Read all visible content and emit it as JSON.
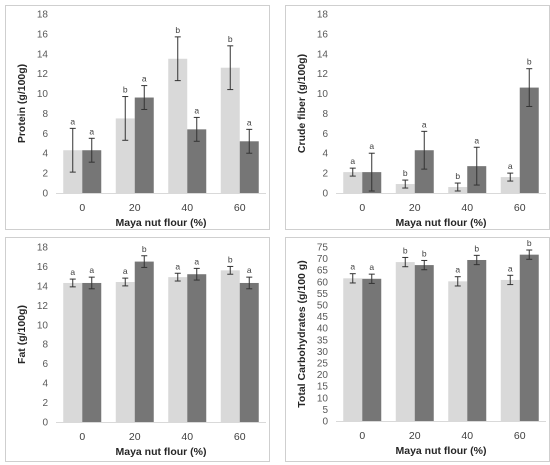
{
  "colors": {
    "series_a": "#d9d9d9",
    "series_b": "#767676"
  },
  "chart_data": [
    {
      "type": "bar",
      "xlabel": "Maya nut flour (%)",
      "ylabel": "Protein (g/100g)",
      "ylim": [
        0,
        18
      ],
      "yticks": [
        0,
        2,
        4,
        6,
        8,
        10,
        12,
        14,
        16,
        18
      ],
      "categories": [
        "0",
        "20",
        "40",
        "60"
      ],
      "grid": false,
      "series": [
        {
          "values": [
            4.3,
            7.5,
            13.5,
            12.6
          ],
          "errors": [
            2.2,
            2.2,
            2.2,
            2.2
          ],
          "letters": [
            "a",
            "b",
            "b",
            "b"
          ]
        },
        {
          "values": [
            4.3,
            9.6,
            6.4,
            5.2
          ],
          "errors": [
            1.2,
            1.2,
            1.2,
            1.2
          ],
          "letters": [
            "a",
            "a",
            "a",
            "a"
          ]
        }
      ]
    },
    {
      "type": "bar",
      "xlabel": "Maya nut flour (%)",
      "ylabel": "Crude fiber (g/100g)",
      "ylim": [
        0,
        18
      ],
      "yticks": [
        0,
        2,
        4,
        6,
        8,
        10,
        12,
        14,
        16,
        18
      ],
      "categories": [
        "0",
        "20",
        "40",
        "60"
      ],
      "grid": false,
      "series": [
        {
          "values": [
            2.1,
            0.9,
            0.6,
            1.6
          ],
          "errors": [
            0.4,
            0.4,
            0.4,
            0.4
          ],
          "letters": [
            "a",
            "b",
            "b",
            "a"
          ]
        },
        {
          "values": [
            2.1,
            4.3,
            2.7,
            10.6
          ],
          "errors": [
            1.9,
            1.9,
            1.9,
            1.9
          ],
          "letters": [
            "a",
            "a",
            "a",
            "b"
          ]
        }
      ]
    },
    {
      "type": "bar",
      "xlabel": "Maya nut flour (%)",
      "ylabel": "Fat (g/100g)",
      "ylim": [
        0,
        18
      ],
      "yticks": [
        0,
        2,
        4,
        6,
        8,
        10,
        12,
        14,
        16,
        18
      ],
      "categories": [
        "0",
        "20",
        "40",
        "60"
      ],
      "grid": false,
      "series": [
        {
          "values": [
            14.3,
            14.4,
            14.9,
            15.6
          ],
          "errors": [
            0.4,
            0.4,
            0.4,
            0.4
          ],
          "letters": [
            "a",
            "a",
            "a",
            "b"
          ]
        },
        {
          "values": [
            14.3,
            16.5,
            15.2,
            14.3
          ],
          "errors": [
            0.6,
            0.6,
            0.6,
            0.6
          ],
          "letters": [
            "a",
            "b",
            "a",
            "a"
          ]
        }
      ]
    },
    {
      "type": "bar",
      "xlabel": "Maya nut flour (%)",
      "ylabel": "Total Carbohydrates (g/100 g)",
      "ylim": [
        0,
        75
      ],
      "yticks": [
        0,
        5,
        10,
        15,
        20,
        25,
        30,
        35,
        40,
        45,
        50,
        55,
        60,
        65,
        70,
        75
      ],
      "categories": [
        "0",
        "20",
        "40",
        "60"
      ],
      "grid": false,
      "series": [
        {
          "values": [
            61.5,
            68.5,
            60.2,
            60.8
          ],
          "errors": [
            2,
            2,
            2,
            2
          ],
          "letters": [
            "a",
            "b",
            "a",
            "a"
          ]
        },
        {
          "values": [
            61.3,
            67.2,
            69.4,
            71.7
          ],
          "errors": [
            2,
            2,
            2,
            2
          ],
          "letters": [
            "a",
            "b",
            "b",
            "b"
          ]
        }
      ]
    }
  ]
}
